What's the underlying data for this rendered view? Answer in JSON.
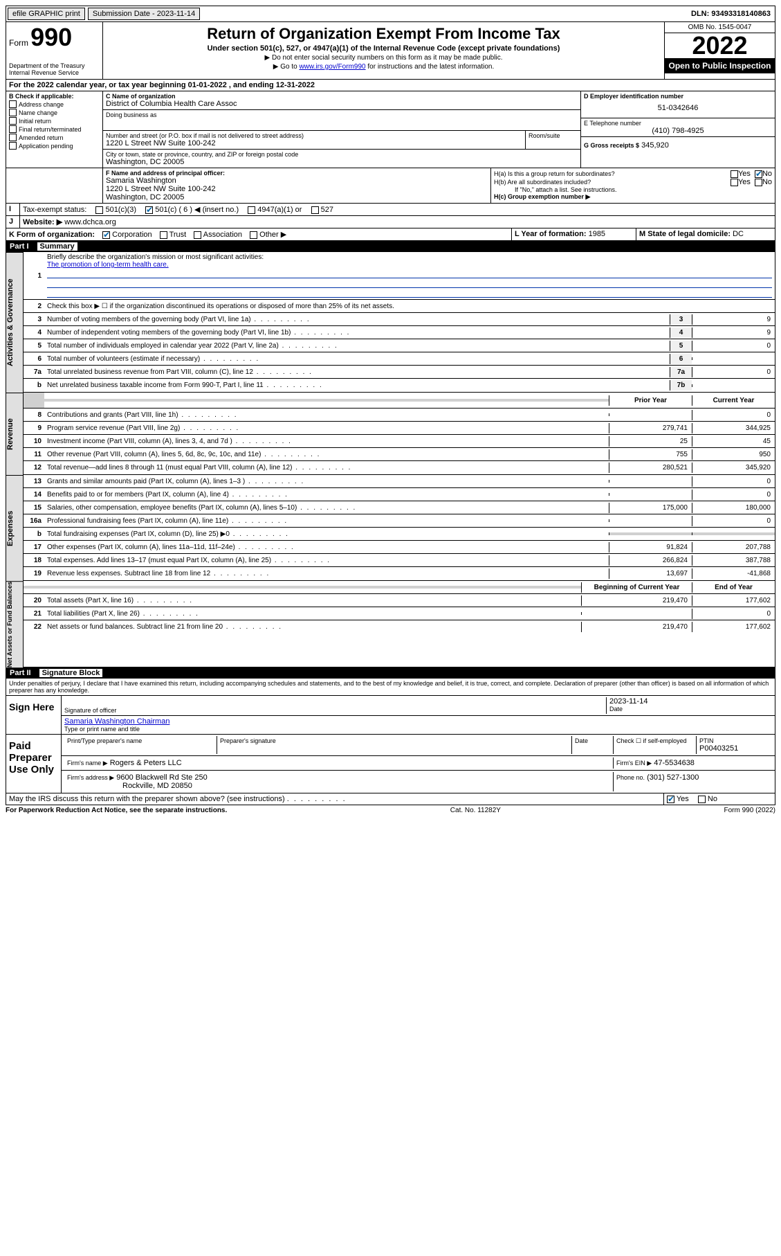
{
  "topbar": {
    "efile": "efile GRAPHIC print",
    "sub_label": "Submission Date - 2023-11-14",
    "dln": "DLN: 93493318140863"
  },
  "header": {
    "form_word": "Form",
    "form_num": "990",
    "dept": "Department of the Treasury Internal Revenue Service",
    "title": "Return of Organization Exempt From Income Tax",
    "sub": "Under section 501(c), 527, or 4947(a)(1) of the Internal Revenue Code (except private foundations)",
    "sub2a": "▶ Do not enter social security numbers on this form as it may be made public.",
    "sub2b_pre": "▶ Go to ",
    "sub2b_link": "www.irs.gov/Form990",
    "sub2b_post": " for instructions and the latest information.",
    "omb": "OMB No. 1545-0047",
    "year": "2022",
    "open": "Open to Public Inspection"
  },
  "A": {
    "text": "For the 2022 calendar year, or tax year beginning 01-01-2022   , and ending 12-31-2022"
  },
  "B": {
    "label": "B Check if applicable:",
    "items": [
      "Address change",
      "Name change",
      "Initial return",
      "Final return/terminated",
      "Amended return",
      "Application pending"
    ]
  },
  "C": {
    "name_label": "C Name of organization",
    "name": "District of Columbia Health Care Assoc",
    "dba_label": "Doing business as",
    "street_label": "Number and street (or P.O. box if mail is not delivered to street address)",
    "room_label": "Room/suite",
    "street": "1220 L Street NW Suite 100-242",
    "city_label": "City or town, state or province, country, and ZIP or foreign postal code",
    "city": "Washington, DC  20005"
  },
  "D": {
    "label": "D Employer identification number",
    "val": "51-0342646"
  },
  "E": {
    "label": "E Telephone number",
    "val": "(410) 798-4925"
  },
  "G": {
    "label": "G Gross receipts $",
    "val": "345,920"
  },
  "F": {
    "label": "F  Name and address of principal officer:",
    "name": "Samaria Washington",
    "addr1": "1220 L Street NW Suite 100-242",
    "addr2": "Washington, DC  20005"
  },
  "H": {
    "a": "H(a)  Is this a group return for subordinates?",
    "b": "H(b)  Are all subordinates included?",
    "b_note": "If \"No,\" attach a list. See instructions.",
    "c": "H(c)  Group exemption number ▶"
  },
  "I": {
    "label": "Tax-exempt status:",
    "opts": [
      "501(c)(3)",
      "501(c) ( 6 ) ◀ (insert no.)",
      "4947(a)(1) or",
      "527"
    ]
  },
  "J": {
    "label": "Website: ▶",
    "val": "www.dchca.org"
  },
  "K": {
    "label": "K Form of organization:",
    "opts": [
      "Corporation",
      "Trust",
      "Association",
      "Other ▶"
    ]
  },
  "L": {
    "label": "L Year of formation:",
    "val": "1985"
  },
  "M": {
    "label": "M State of legal domicile:",
    "val": "DC"
  },
  "part1": {
    "num": "Part I",
    "title": "Summary"
  },
  "summary": {
    "l1": "Briefly describe the organization's mission or most significant activities:",
    "l1text": "The promotion of long-term health care.",
    "l2": "Check this box ▶ ☐  if the organization discontinued its operations or disposed of more than 25% of its net assets.",
    "lines_gov": [
      {
        "n": "3",
        "t": "Number of voting members of the governing body (Part VI, line 1a)",
        "bx": "3",
        "v": "9"
      },
      {
        "n": "4",
        "t": "Number of independent voting members of the governing body (Part VI, line 1b)",
        "bx": "4",
        "v": "9"
      },
      {
        "n": "5",
        "t": "Total number of individuals employed in calendar year 2022 (Part V, line 2a)",
        "bx": "5",
        "v": "0"
      },
      {
        "n": "6",
        "t": "Total number of volunteers (estimate if necessary)",
        "bx": "6",
        "v": ""
      },
      {
        "n": "7a",
        "t": "Total unrelated business revenue from Part VIII, column (C), line 12",
        "bx": "7a",
        "v": "0"
      },
      {
        "n": "b",
        "t": "Net unrelated business taxable income from Form 990-T, Part I, line 11",
        "bx": "7b",
        "v": ""
      }
    ],
    "col_prior": "Prior Year",
    "col_current": "Current Year",
    "revenue": [
      {
        "n": "8",
        "t": "Contributions and grants (Part VIII, line 1h)",
        "p": "",
        "c": "0"
      },
      {
        "n": "9",
        "t": "Program service revenue (Part VIII, line 2g)",
        "p": "279,741",
        "c": "344,925"
      },
      {
        "n": "10",
        "t": "Investment income (Part VIII, column (A), lines 3, 4, and 7d )",
        "p": "25",
        "c": "45"
      },
      {
        "n": "11",
        "t": "Other revenue (Part VIII, column (A), lines 5, 6d, 8c, 9c, 10c, and 11e)",
        "p": "755",
        "c": "950"
      },
      {
        "n": "12",
        "t": "Total revenue—add lines 8 through 11 (must equal Part VIII, column (A), line 12)",
        "p": "280,521",
        "c": "345,920"
      }
    ],
    "expenses": [
      {
        "n": "13",
        "t": "Grants and similar amounts paid (Part IX, column (A), lines 1–3 )",
        "p": "",
        "c": "0"
      },
      {
        "n": "14",
        "t": "Benefits paid to or for members (Part IX, column (A), line 4)",
        "p": "",
        "c": "0"
      },
      {
        "n": "15",
        "t": "Salaries, other compensation, employee benefits (Part IX, column (A), lines 5–10)",
        "p": "175,000",
        "c": "180,000"
      },
      {
        "n": "16a",
        "t": "Professional fundraising fees (Part IX, column (A), line 11e)",
        "p": "",
        "c": "0"
      },
      {
        "n": "b",
        "t": "Total fundraising expenses (Part IX, column (D), line 25) ▶0",
        "p": "",
        "c": "",
        "shaded": true
      },
      {
        "n": "17",
        "t": "Other expenses (Part IX, column (A), lines 11a–11d, 11f–24e)",
        "p": "91,824",
        "c": "207,788"
      },
      {
        "n": "18",
        "t": "Total expenses. Add lines 13–17 (must equal Part IX, column (A), line 25)",
        "p": "266,824",
        "c": "387,788"
      },
      {
        "n": "19",
        "t": "Revenue less expenses. Subtract line 18 from line 12",
        "p": "13,697",
        "c": "-41,868"
      }
    ],
    "col_begin": "Beginning of Current Year",
    "col_end": "End of Year",
    "netassets": [
      {
        "n": "20",
        "t": "Total assets (Part X, line 16)",
        "p": "219,470",
        "c": "177,602"
      },
      {
        "n": "21",
        "t": "Total liabilities (Part X, line 26)",
        "p": "",
        "c": "0"
      },
      {
        "n": "22",
        "t": "Net assets or fund balances. Subtract line 21 from line 20",
        "p": "219,470",
        "c": "177,602"
      }
    ]
  },
  "part2": {
    "num": "Part II",
    "title": "Signature Block"
  },
  "sig": {
    "penalty": "Under penalties of perjury, I declare that I have examined this return, including accompanying schedules and statements, and to the best of my knowledge and belief, it is true, correct, and complete. Declaration of preparer (other than officer) is based on all information of which preparer has any knowledge.",
    "sign_here": "Sign Here",
    "sig_officer": "Signature of officer",
    "date_label": "Date",
    "date": "2023-11-14",
    "name_line": "Samaria Washington Chairman",
    "type_name": "Type or print name and title",
    "paid": "Paid Preparer Use Only",
    "prep_name_label": "Print/Type preparer's name",
    "prep_sig_label": "Preparer's signature",
    "check_if": "Check ☐ if self-employed",
    "ptin_label": "PTIN",
    "ptin": "P00403251",
    "firm_name_label": "Firm's name    ▶",
    "firm_name": "Rogers & Peters LLC",
    "firm_ein_label": "Firm's EIN ▶",
    "firm_ein": "47-5534638",
    "firm_addr_label": "Firm's address ▶",
    "firm_addr1": "9600 Blackwell Rd Ste 250",
    "firm_addr2": "Rockville, MD  20850",
    "phone_label": "Phone no.",
    "phone": "(301) 527-1300",
    "may_irs": "May the IRS discuss this return with the preparer shown above? (see instructions)"
  },
  "footer": {
    "left": "For Paperwork Reduction Act Notice, see the separate instructions.",
    "center": "Cat. No. 11282Y",
    "right": "Form 990 (2022)"
  }
}
